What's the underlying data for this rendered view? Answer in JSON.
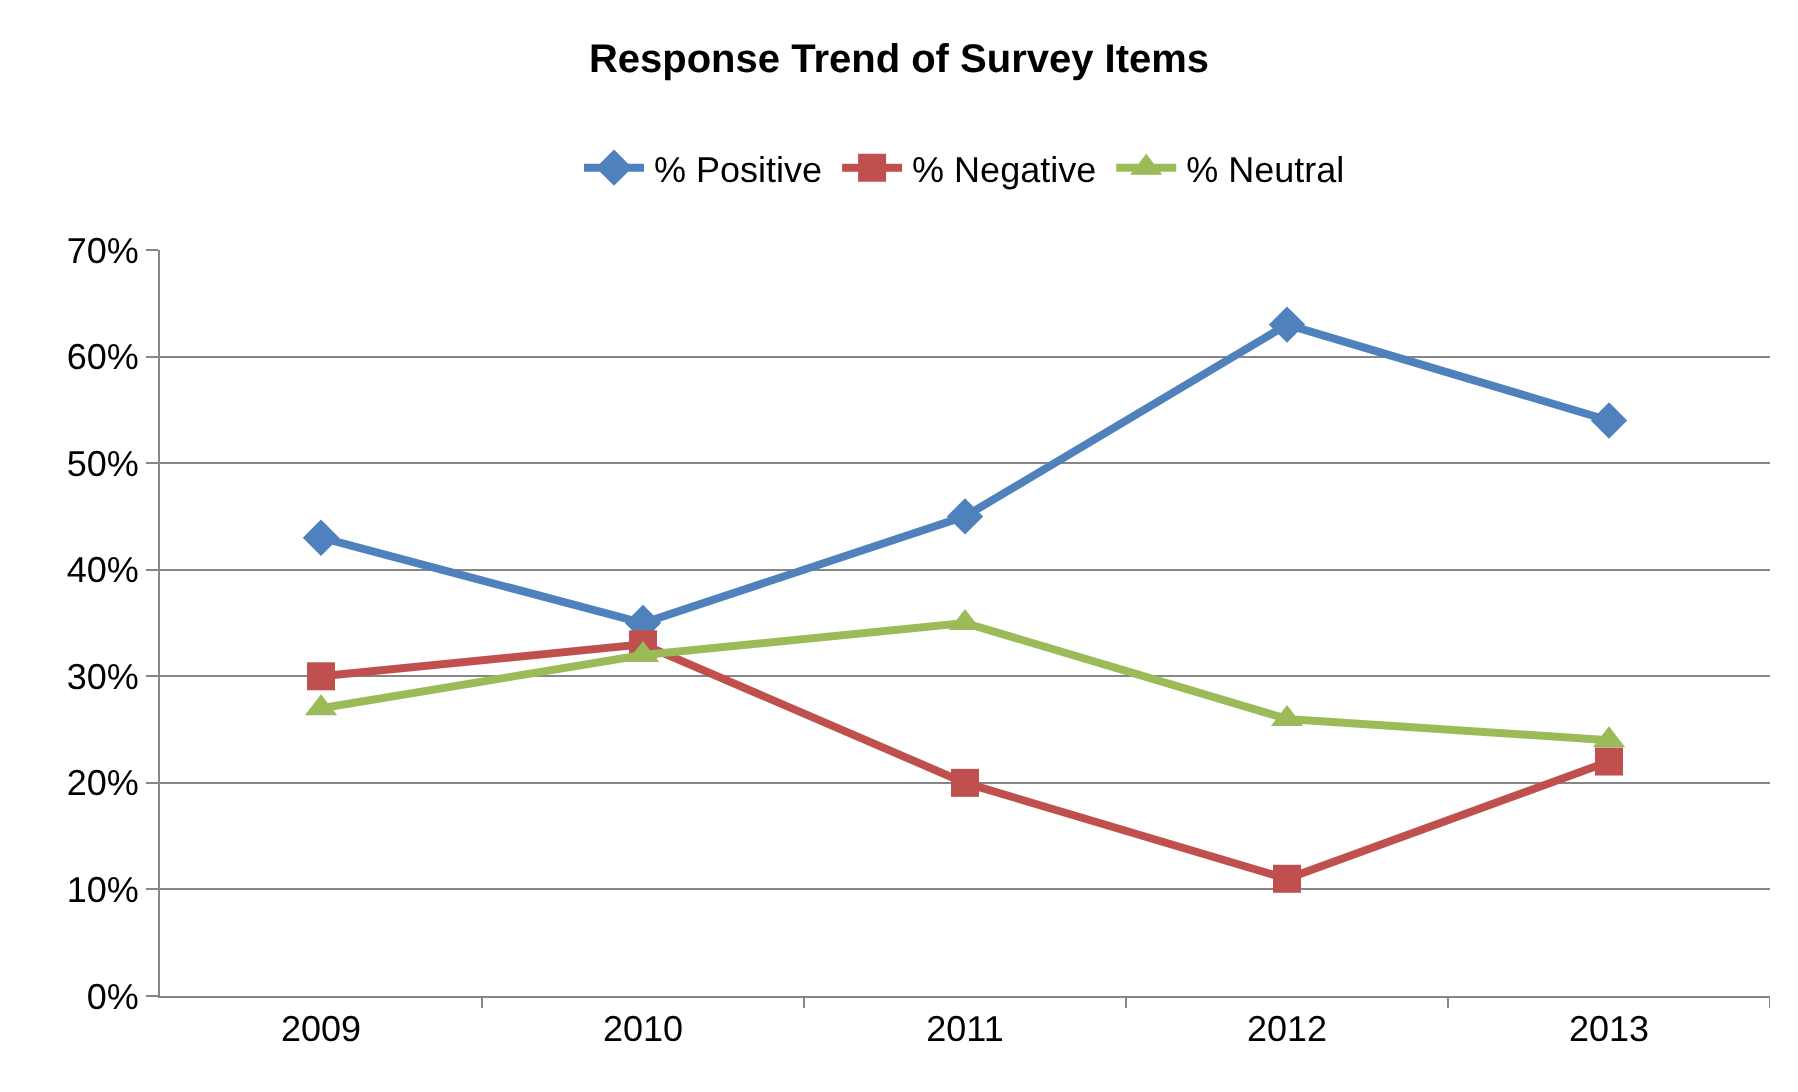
{
  "chart_data": {
    "type": "line",
    "title": "Response Trend of Survey Items",
    "categories": [
      "2009",
      "2010",
      "2011",
      "2012",
      "2013"
    ],
    "series": [
      {
        "name": "% Positive",
        "color": "#4f81bd",
        "marker": "diamond",
        "values": [
          43,
          35,
          45,
          63,
          54
        ]
      },
      {
        "name": "% Negative",
        "color": "#c0504d",
        "marker": "square",
        "values": [
          30,
          33,
          20,
          11,
          22
        ]
      },
      {
        "name": "% Neutral",
        "color": "#9bbb59",
        "marker": "triangle",
        "values": [
          27,
          32,
          35,
          26,
          24
        ]
      }
    ],
    "ylim": [
      0,
      70
    ],
    "yticks": [
      {
        "value": 0,
        "label": "0%"
      },
      {
        "value": 10,
        "label": "10%"
      },
      {
        "value": 20,
        "label": "20%"
      },
      {
        "value": 30,
        "label": "30%"
      },
      {
        "value": 40,
        "label": "40%"
      },
      {
        "value": 50,
        "label": "50%"
      },
      {
        "value": 60,
        "label": "60%"
      },
      {
        "value": 70,
        "label": "70%"
      }
    ],
    "grid": "y",
    "legend": "top",
    "line_style": "solid"
  }
}
